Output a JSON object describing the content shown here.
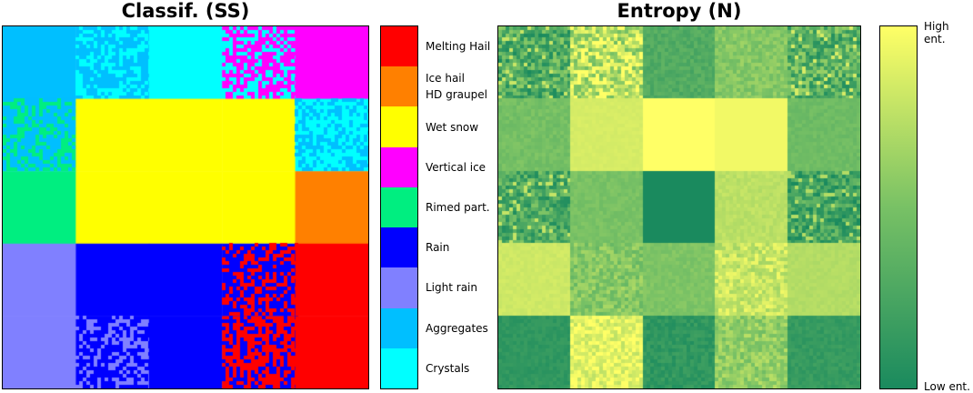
{
  "chart_data": [
    {
      "type": "heatmap",
      "title": "Classif. (SS)",
      "grid_rows": 5,
      "grid_cols": 5,
      "categories": [
        "Crystals",
        "Aggregates",
        "Light rain",
        "Rain",
        "Rimed part.",
        "Vertical ice",
        "Wet snow",
        "Ice hail\nHD graupel",
        "Melting Hail"
      ],
      "colors": [
        "#00ffff",
        "#00bfff",
        "#8080ff",
        "#0000ff",
        "#00ee80",
        "#ff00ff",
        "#ffff00",
        "#ff8000",
        "#ff0000"
      ],
      "blocks": [
        {
          "row": 0,
          "col": 0,
          "cls": [
            1
          ],
          "noise": false
        },
        {
          "row": 0,
          "col": 1,
          "cls": [
            1,
            0
          ],
          "noise": true
        },
        {
          "row": 0,
          "col": 2,
          "cls": [
            0
          ],
          "noise": false
        },
        {
          "row": 0,
          "col": 3,
          "cls": [
            5,
            0
          ],
          "noise": true
        },
        {
          "row": 0,
          "col": 4,
          "cls": [
            5
          ],
          "noise": false
        },
        {
          "row": 1,
          "col": 0,
          "cls": [
            1,
            4
          ],
          "noise": true
        },
        {
          "row": 1,
          "col": 1,
          "cls": [
            6
          ],
          "noise": false
        },
        {
          "row": 1,
          "col": 2,
          "cls": [
            6
          ],
          "noise": false
        },
        {
          "row": 1,
          "col": 3,
          "cls": [
            6
          ],
          "noise": false
        },
        {
          "row": 1,
          "col": 4,
          "cls": [
            0,
            1
          ],
          "noise": true
        },
        {
          "row": 2,
          "col": 0,
          "cls": [
            4
          ],
          "noise": false
        },
        {
          "row": 2,
          "col": 1,
          "cls": [
            6
          ],
          "noise": false
        },
        {
          "row": 2,
          "col": 2,
          "cls": [
            6
          ],
          "noise": false
        },
        {
          "row": 2,
          "col": 3,
          "cls": [
            6
          ],
          "noise": false
        },
        {
          "row": 2,
          "col": 4,
          "cls": [
            7
          ],
          "noise": false
        },
        {
          "row": 3,
          "col": 0,
          "cls": [
            2
          ],
          "noise": false
        },
        {
          "row": 3,
          "col": 1,
          "cls": [
            3
          ],
          "noise": false
        },
        {
          "row": 3,
          "col": 2,
          "cls": [
            3
          ],
          "noise": false
        },
        {
          "row": 3,
          "col": 3,
          "cls": [
            3,
            8
          ],
          "noise": true
        },
        {
          "row": 3,
          "col": 4,
          "cls": [
            8
          ],
          "noise": false
        },
        {
          "row": 4,
          "col": 0,
          "cls": [
            2
          ],
          "noise": false
        },
        {
          "row": 4,
          "col": 1,
          "cls": [
            3,
            2
          ],
          "noise": true
        },
        {
          "row": 4,
          "col": 2,
          "cls": [
            3
          ],
          "noise": false
        },
        {
          "row": 4,
          "col": 3,
          "cls": [
            8,
            3
          ],
          "noise": true
        },
        {
          "row": 4,
          "col": 4,
          "cls": [
            8
          ],
          "noise": false
        }
      ]
    },
    {
      "type": "heatmap",
      "title": "Entropy (N)",
      "grid_rows": 5,
      "grid_cols": 5,
      "colorbar": {
        "low_label": "Low ent.",
        "high_label": "High ent.",
        "low_color": "#1a8a5e",
        "mid_color": "#78c165",
        "high_color": "#ffff66"
      },
      "values": [
        [
          0.3,
          0.75,
          0.3,
          0.55,
          0.35
        ],
        [
          0.48,
          0.85,
          1.0,
          0.95,
          0.45
        ],
        [
          0.28,
          0.5,
          0.0,
          0.75,
          0.22
        ],
        [
          0.82,
          0.55,
          0.52,
          0.8,
          0.72
        ],
        [
          0.12,
          0.9,
          0.12,
          0.6,
          0.15
        ]
      ],
      "noise": [
        [
          0.3,
          0.3,
          0.08,
          0.1,
          0.3
        ],
        [
          0.06,
          0.02,
          0.0,
          0.0,
          0.05
        ],
        [
          0.25,
          0.05,
          0.0,
          0.05,
          0.25
        ],
        [
          0.03,
          0.15,
          0.05,
          0.15,
          0.03
        ],
        [
          0.05,
          0.15,
          0.08,
          0.15,
          0.06
        ]
      ]
    }
  ]
}
